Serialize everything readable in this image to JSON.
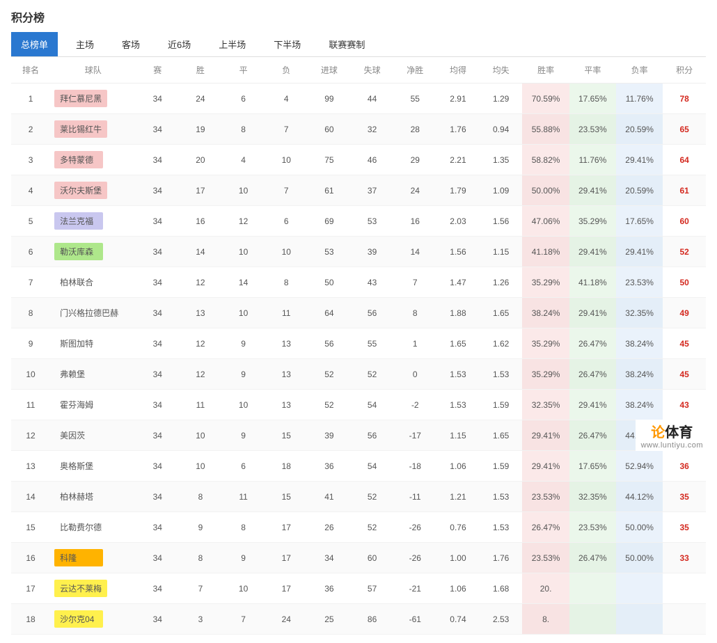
{
  "title": "积分榜",
  "tabs": [
    "总榜单",
    "主场",
    "客场",
    "近6场",
    "上半场",
    "下半场",
    "联赛赛制"
  ],
  "columns": [
    "排名",
    "球队",
    "赛",
    "胜",
    "平",
    "负",
    "进球",
    "失球",
    "净胜",
    "均得",
    "均失",
    "胜率",
    "平率",
    "负率",
    "积分"
  ],
  "team_colors": {
    "pink": "#f6c6c6",
    "purple": "#c9c7ef",
    "green": "#aee78b",
    "orange": "#ffb300",
    "yellow": "#fff04d",
    "none": "transparent"
  },
  "pct_colors": {
    "win": "#fbe9e9",
    "draw": "#ebf7eb",
    "loss": "#eaf2fb"
  },
  "pts_color": "#d4291f",
  "watermark": {
    "line1a": "论",
    "line1b": "体育",
    "line2": "www.luntiyu.com"
  },
  "rows": [
    {
      "rank": 1,
      "team": "拜仁慕尼黑",
      "played": 34,
      "w": 24,
      "d": 6,
      "l": 4,
      "gf": 99,
      "ga": 44,
      "gd": 55,
      "avgf": "2.91",
      "avga": "1.29",
      "wr": "70.59%",
      "dr": "17.65%",
      "lr": "11.76%",
      "pts": 78,
      "bg": "pink"
    },
    {
      "rank": 2,
      "team": "莱比锡红牛",
      "played": 34,
      "w": 19,
      "d": 8,
      "l": 7,
      "gf": 60,
      "ga": 32,
      "gd": 28,
      "avgf": "1.76",
      "avga": "0.94",
      "wr": "55.88%",
      "dr": "23.53%",
      "lr": "20.59%",
      "pts": 65,
      "bg": "pink"
    },
    {
      "rank": 3,
      "team": "多特蒙德",
      "played": 34,
      "w": 20,
      "d": 4,
      "l": 10,
      "gf": 75,
      "ga": 46,
      "gd": 29,
      "avgf": "2.21",
      "avga": "1.35",
      "wr": "58.82%",
      "dr": "11.76%",
      "lr": "29.41%",
      "pts": 64,
      "bg": "pink"
    },
    {
      "rank": 4,
      "team": "沃尔夫斯堡",
      "played": 34,
      "w": 17,
      "d": 10,
      "l": 7,
      "gf": 61,
      "ga": 37,
      "gd": 24,
      "avgf": "1.79",
      "avga": "1.09",
      "wr": "50.00%",
      "dr": "29.41%",
      "lr": "20.59%",
      "pts": 61,
      "bg": "pink"
    },
    {
      "rank": 5,
      "team": "法兰克福",
      "played": 34,
      "w": 16,
      "d": 12,
      "l": 6,
      "gf": 69,
      "ga": 53,
      "gd": 16,
      "avgf": "2.03",
      "avga": "1.56",
      "wr": "47.06%",
      "dr": "35.29%",
      "lr": "17.65%",
      "pts": 60,
      "bg": "purple"
    },
    {
      "rank": 6,
      "team": "勒沃库森",
      "played": 34,
      "w": 14,
      "d": 10,
      "l": 10,
      "gf": 53,
      "ga": 39,
      "gd": 14,
      "avgf": "1.56",
      "avga": "1.15",
      "wr": "41.18%",
      "dr": "29.41%",
      "lr": "29.41%",
      "pts": 52,
      "bg": "green"
    },
    {
      "rank": 7,
      "team": "柏林联合",
      "played": 34,
      "w": 12,
      "d": 14,
      "l": 8,
      "gf": 50,
      "ga": 43,
      "gd": 7,
      "avgf": "1.47",
      "avga": "1.26",
      "wr": "35.29%",
      "dr": "41.18%",
      "lr": "23.53%",
      "pts": 50,
      "bg": "none"
    },
    {
      "rank": 8,
      "team": "门兴格拉德巴赫",
      "played": 34,
      "w": 13,
      "d": 10,
      "l": 11,
      "gf": 64,
      "ga": 56,
      "gd": 8,
      "avgf": "1.88",
      "avga": "1.65",
      "wr": "38.24%",
      "dr": "29.41%",
      "lr": "32.35%",
      "pts": 49,
      "bg": "none"
    },
    {
      "rank": 9,
      "team": "斯图加特",
      "played": 34,
      "w": 12,
      "d": 9,
      "l": 13,
      "gf": 56,
      "ga": 55,
      "gd": 1,
      "avgf": "1.65",
      "avga": "1.62",
      "wr": "35.29%",
      "dr": "26.47%",
      "lr": "38.24%",
      "pts": 45,
      "bg": "none"
    },
    {
      "rank": 10,
      "team": "弗赖堡",
      "played": 34,
      "w": 12,
      "d": 9,
      "l": 13,
      "gf": 52,
      "ga": 52,
      "gd": 0,
      "avgf": "1.53",
      "avga": "1.53",
      "wr": "35.29%",
      "dr": "26.47%",
      "lr": "38.24%",
      "pts": 45,
      "bg": "none"
    },
    {
      "rank": 11,
      "team": "霍芬海姆",
      "played": 34,
      "w": 11,
      "d": 10,
      "l": 13,
      "gf": 52,
      "ga": 54,
      "gd": -2,
      "avgf": "1.53",
      "avga": "1.59",
      "wr": "32.35%",
      "dr": "29.41%",
      "lr": "38.24%",
      "pts": 43,
      "bg": "none"
    },
    {
      "rank": 12,
      "team": "美因茨",
      "played": 34,
      "w": 10,
      "d": 9,
      "l": 15,
      "gf": 39,
      "ga": 56,
      "gd": -17,
      "avgf": "1.15",
      "avga": "1.65",
      "wr": "29.41%",
      "dr": "26.47%",
      "lr": "44.12%",
      "pts": 39,
      "bg": "none"
    },
    {
      "rank": 13,
      "team": "奥格斯堡",
      "played": 34,
      "w": 10,
      "d": 6,
      "l": 18,
      "gf": 36,
      "ga": 54,
      "gd": -18,
      "avgf": "1.06",
      "avga": "1.59",
      "wr": "29.41%",
      "dr": "17.65%",
      "lr": "52.94%",
      "pts": 36,
      "bg": "none"
    },
    {
      "rank": 14,
      "team": "柏林赫塔",
      "played": 34,
      "w": 8,
      "d": 11,
      "l": 15,
      "gf": 41,
      "ga": 52,
      "gd": -11,
      "avgf": "1.21",
      "avga": "1.53",
      "wr": "23.53%",
      "dr": "32.35%",
      "lr": "44.12%",
      "pts": 35,
      "bg": "none"
    },
    {
      "rank": 15,
      "team": "比勒费尔德",
      "played": 34,
      "w": 9,
      "d": 8,
      "l": 17,
      "gf": 26,
      "ga": 52,
      "gd": -26,
      "avgf": "0.76",
      "avga": "1.53",
      "wr": "26.47%",
      "dr": "23.53%",
      "lr": "50.00%",
      "pts": 35,
      "bg": "none"
    },
    {
      "rank": 16,
      "team": "科隆",
      "played": 34,
      "w": 8,
      "d": 9,
      "l": 17,
      "gf": 34,
      "ga": 60,
      "gd": -26,
      "avgf": "1.00",
      "avga": "1.76",
      "wr": "23.53%",
      "dr": "26.47%",
      "lr": "50.00%",
      "pts": 33,
      "bg": "orange"
    },
    {
      "rank": 17,
      "team": "云达不莱梅",
      "played": 34,
      "w": 7,
      "d": 10,
      "l": 17,
      "gf": 36,
      "ga": 57,
      "gd": -21,
      "avgf": "1.06",
      "avga": "1.68",
      "wr": "20.",
      "dr": "",
      "lr": "",
      "pts": "",
      "bg": "yellow"
    },
    {
      "rank": 18,
      "team": "沙尔克04",
      "played": 34,
      "w": 3,
      "d": 7,
      "l": 24,
      "gf": 25,
      "ga": 86,
      "gd": -61,
      "avgf": "0.74",
      "avga": "2.53",
      "wr": "8.",
      "dr": "",
      "lr": "",
      "pts": "",
      "bg": "yellow"
    }
  ]
}
